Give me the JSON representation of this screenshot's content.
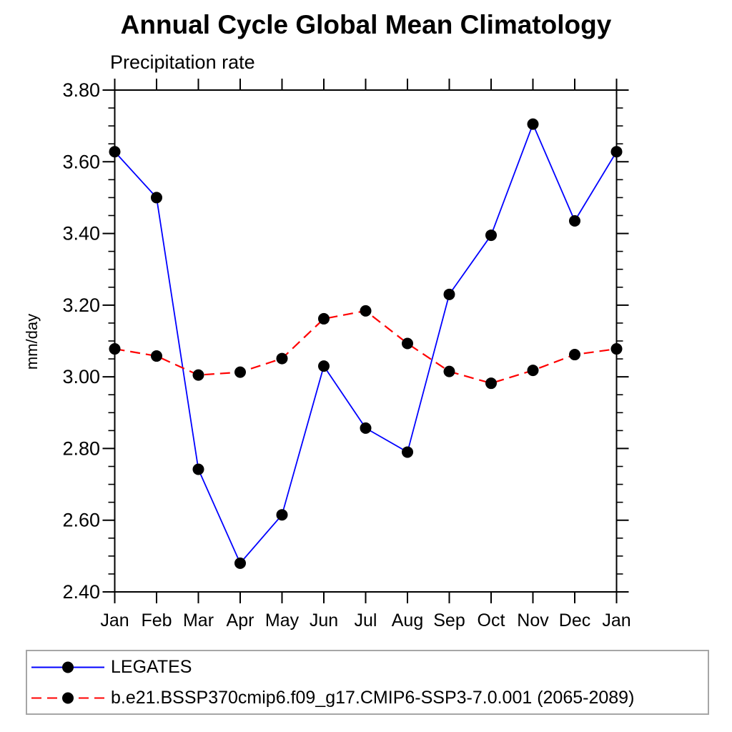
{
  "page": {
    "background": "#ffffff"
  },
  "colors": {
    "axis": "#000000",
    "text": "#000000",
    "marker": "#000000",
    "legend_border": "#a6a6a6",
    "series_blue": "#0000ff",
    "series_red": "#ff0000"
  },
  "chart_data": {
    "type": "line",
    "title": "Annual Cycle Global Mean Climatology",
    "subtitle": "Precipitation rate",
    "ylabel": "mm/day",
    "xlabel": "",
    "x_categories": [
      "Jan",
      "Feb",
      "Mar",
      "Apr",
      "May",
      "Jun",
      "Jul",
      "Aug",
      "Sep",
      "Oct",
      "Nov",
      "Dec",
      "Jan"
    ],
    "ylim": [
      2.4,
      3.8
    ],
    "y_major_tick_step": 0.2,
    "y_minor_tick_step": 0.05,
    "y_tick_labels": [
      "2.40",
      "2.60",
      "2.80",
      "3.00",
      "3.20",
      "3.40",
      "3.60",
      "3.80"
    ],
    "grid": false,
    "legend_position": "bottom-left-box",
    "marker": {
      "shape": "circle",
      "color": "#000000",
      "radius_px": 8
    },
    "series": [
      {
        "name": "LEGATES",
        "color": "#0000ff",
        "line_style": "solid",
        "values": [
          3.628,
          3.5,
          2.742,
          2.48,
          2.615,
          3.03,
          2.857,
          2.79,
          3.23,
          3.395,
          3.705,
          3.435,
          3.628
        ]
      },
      {
        "name": "b.e21.BSSP370cmip6.f09_g17.CMIP6-SSP3-7.0.001 (2065-2089)",
        "color": "#ff0000",
        "line_style": "dashed",
        "values": [
          3.078,
          3.058,
          3.005,
          3.013,
          3.051,
          3.162,
          3.184,
          3.093,
          3.015,
          2.982,
          3.018,
          3.062,
          3.078
        ]
      }
    ]
  }
}
